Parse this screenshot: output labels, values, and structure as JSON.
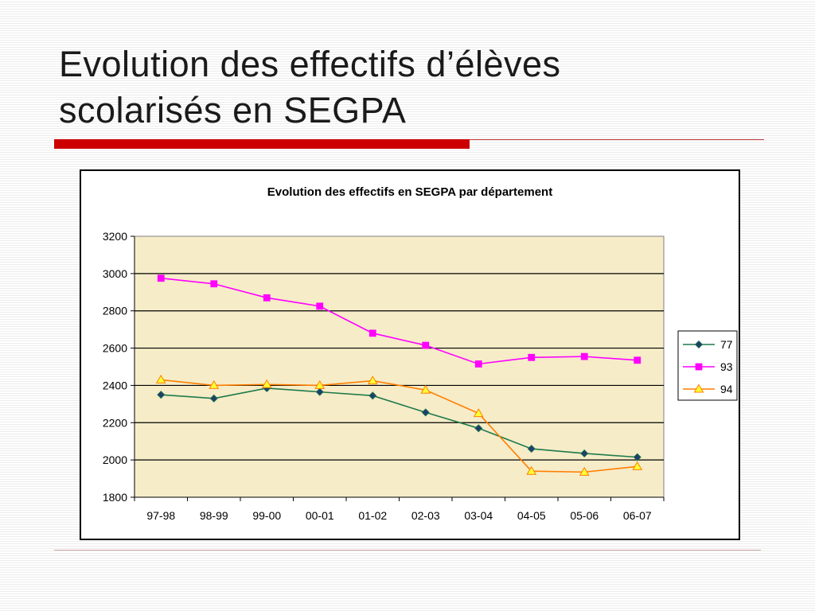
{
  "slide": {
    "title_line1": "Evolution des effectifs d’élèves",
    "title_line2": "scolarisés en SEGPA"
  },
  "chart_data": {
    "type": "line",
    "title": "Evolution des effectifs en SEGPA par département",
    "categories": [
      "97-98",
      "98-99",
      "99-00",
      "00-01",
      "01-02",
      "02-03",
      "03-04",
      "04-05",
      "05-06",
      "06-07"
    ],
    "ylim": [
      1800,
      3200
    ],
    "yticks": [
      1800,
      2000,
      2200,
      2400,
      2600,
      2800,
      3000,
      3200
    ],
    "grid": true,
    "legend_position": "right",
    "plot_background": "#f6ecc8",
    "series": [
      {
        "name": "77",
        "color": "#1f7a4a",
        "marker": "diamond",
        "marker_fill": "#1f3f6b",
        "values": [
          2350,
          2330,
          2385,
          2365,
          2345,
          2255,
          2170,
          2060,
          2035,
          2015
        ]
      },
      {
        "name": "93",
        "color": "#ff00ff",
        "marker": "square",
        "marker_fill": "#ff00ff",
        "values": [
          2975,
          2945,
          2870,
          2825,
          2680,
          2615,
          2515,
          2550,
          2555,
          2535
        ]
      },
      {
        "name": "94",
        "color": "#ff7f00",
        "marker": "triangle",
        "marker_fill": "#ffff33",
        "values": [
          2430,
          2400,
          2405,
          2400,
          2425,
          2375,
          2250,
          1940,
          1935,
          1965
        ]
      }
    ]
  }
}
